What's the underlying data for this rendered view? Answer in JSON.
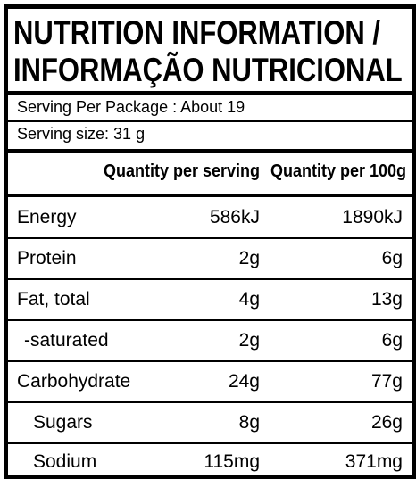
{
  "title": {
    "line1": "NUTRITION INFORMATION /",
    "line2": "INFORMAÇÃO NUTRICIONAL"
  },
  "serving": {
    "per_package": "Serving Per Package : About 19",
    "size": "Serving size: 31 g"
  },
  "table": {
    "headers": {
      "per_serving": "Quantity per serving",
      "per_100g": "Quantity per 100g"
    },
    "rows": [
      {
        "label": "Energy",
        "per_serving": "586kJ",
        "per_100g": "1890kJ"
      },
      {
        "label": "Protein",
        "per_serving": "2g",
        "per_100g": "6g"
      },
      {
        "label": "Fat, total",
        "per_serving": "4g",
        "per_100g": "13g"
      },
      {
        "label": "-saturated",
        "per_serving": "2g",
        "per_100g": "6g"
      },
      {
        "label": "Carbohydrate",
        "per_serving": "24g",
        "per_100g": "77g"
      },
      {
        "label": "Sugars",
        "per_serving": "8g",
        "per_100g": "26g"
      },
      {
        "label": "Sodium",
        "per_serving": "115mg",
        "per_100g": "371mg"
      }
    ]
  }
}
